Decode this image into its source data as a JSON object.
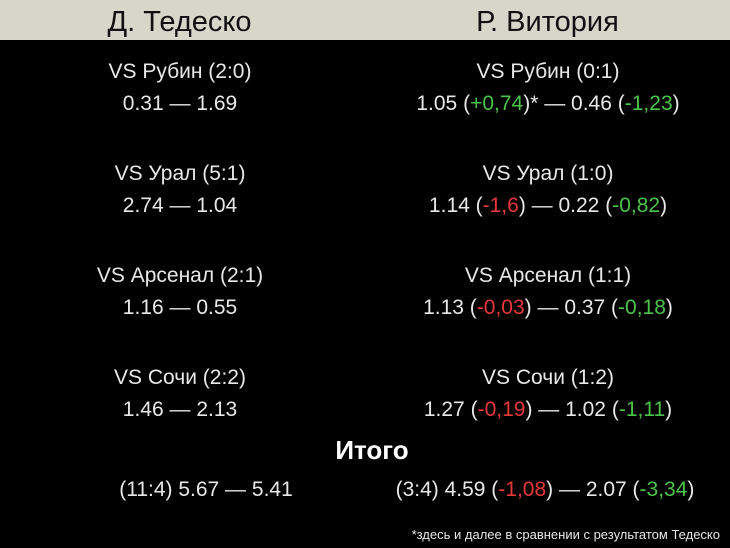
{
  "header": {
    "left": "Д. Тедеско",
    "right": "Р. Витория"
  },
  "matches": [
    {
      "left_title": "VS Рубин (2:0)",
      "left_line": "0.31 — 1.69",
      "right_title": "VS Рубин (0:1)",
      "right_line": [
        "1.05 (",
        {
          "text": "+0,74",
          "color": "#4cc44c"
        },
        ")* — 0.46 (",
        {
          "text": "-1,23",
          "color": "#4cc44c"
        },
        ")"
      ]
    },
    {
      "left_title": "VS Урал (5:1)",
      "left_line": "2.74 — 1.04",
      "right_title": "VS Урал (1:0)",
      "right_line": [
        "1.14 (",
        {
          "text": "-1,6",
          "color": "#e8383a"
        },
        ") — 0.22 (",
        {
          "text": "-0,82",
          "color": "#4cc44c"
        },
        ")"
      ]
    },
    {
      "left_title": "VS Арсенал (2:1)",
      "left_line": "1.16 — 0.55",
      "right_title": "VS Арсенал (1:1)",
      "right_line": [
        "1.13 (",
        {
          "text": "-0,03",
          "color": "#e8383a"
        },
        ") — 0.37 (",
        {
          "text": "-0,18",
          "color": "#4cc44c"
        },
        ")"
      ]
    },
    {
      "left_title": "VS Сочи (2:2)",
      "left_line": "1.46 — 2.13",
      "right_title": "VS Сочи (1:2)",
      "right_line": [
        "1.27 (",
        {
          "text": "-0,19",
          "color": "#e8383a"
        },
        ") — 1.02 (",
        {
          "text": "-1,11",
          "color": "#4cc44c"
        },
        ")"
      ]
    }
  ],
  "total": {
    "title": "Итого",
    "left": "(11:4) 5.67 — 5.41",
    "right": [
      "(3:4) 4.59 (",
      {
        "text": "-1,08",
        "color": "#e8383a"
      },
      ") — 2.07 (",
      {
        "text": "-3,34",
        "color": "#4cc44c"
      },
      ")"
    ]
  },
  "footnote": "*здесь и далее в сравнении с результатом Тедеско"
}
